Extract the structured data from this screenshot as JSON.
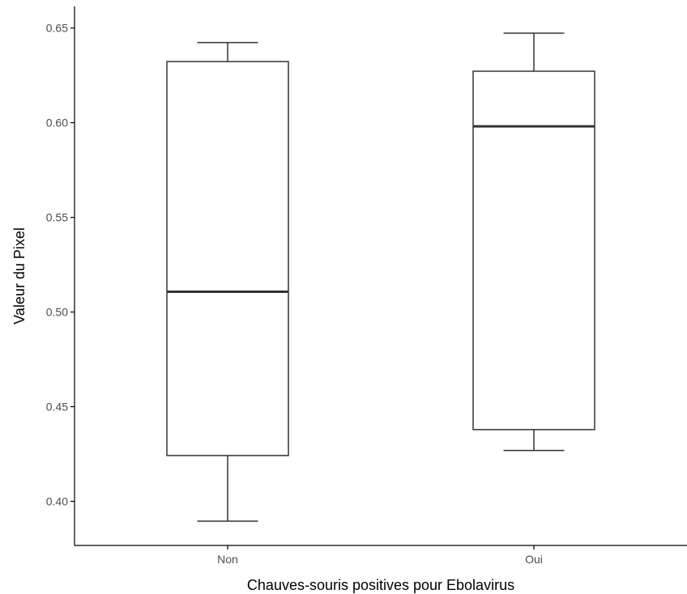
{
  "chart_data": {
    "type": "box",
    "title": "",
    "xlabel": "Chauves-souris positives pour Ebolavirus",
    "ylabel": "Valeur du Pixel",
    "categories": [
      "Non",
      "Oui"
    ],
    "ylim": [
      0.3767,
      0.6614
    ],
    "yticks": [
      0.4,
      0.45,
      0.5,
      0.55,
      0.6,
      0.65
    ],
    "ytick_labels": [
      "0.40",
      "0.45",
      "0.50",
      "0.55",
      "0.60",
      "0.65"
    ],
    "grid": false,
    "legend": "none",
    "series": [
      {
        "category": "Non",
        "whisker_low": 0.3895,
        "q1": 0.4242,
        "median": 0.5107,
        "q3": 0.6323,
        "whisker_high": 0.6423
      },
      {
        "category": "Oui",
        "whisker_low": 0.4269,
        "q1": 0.4379,
        "median": 0.5981,
        "q3": 0.6272,
        "whisker_high": 0.6473
      }
    ],
    "colors": {
      "box_stroke": "#333333",
      "box_fill": "#ffffff",
      "median_stroke": "#333333",
      "axis": "#000000",
      "tick_label": "#4d4d4d"
    }
  }
}
